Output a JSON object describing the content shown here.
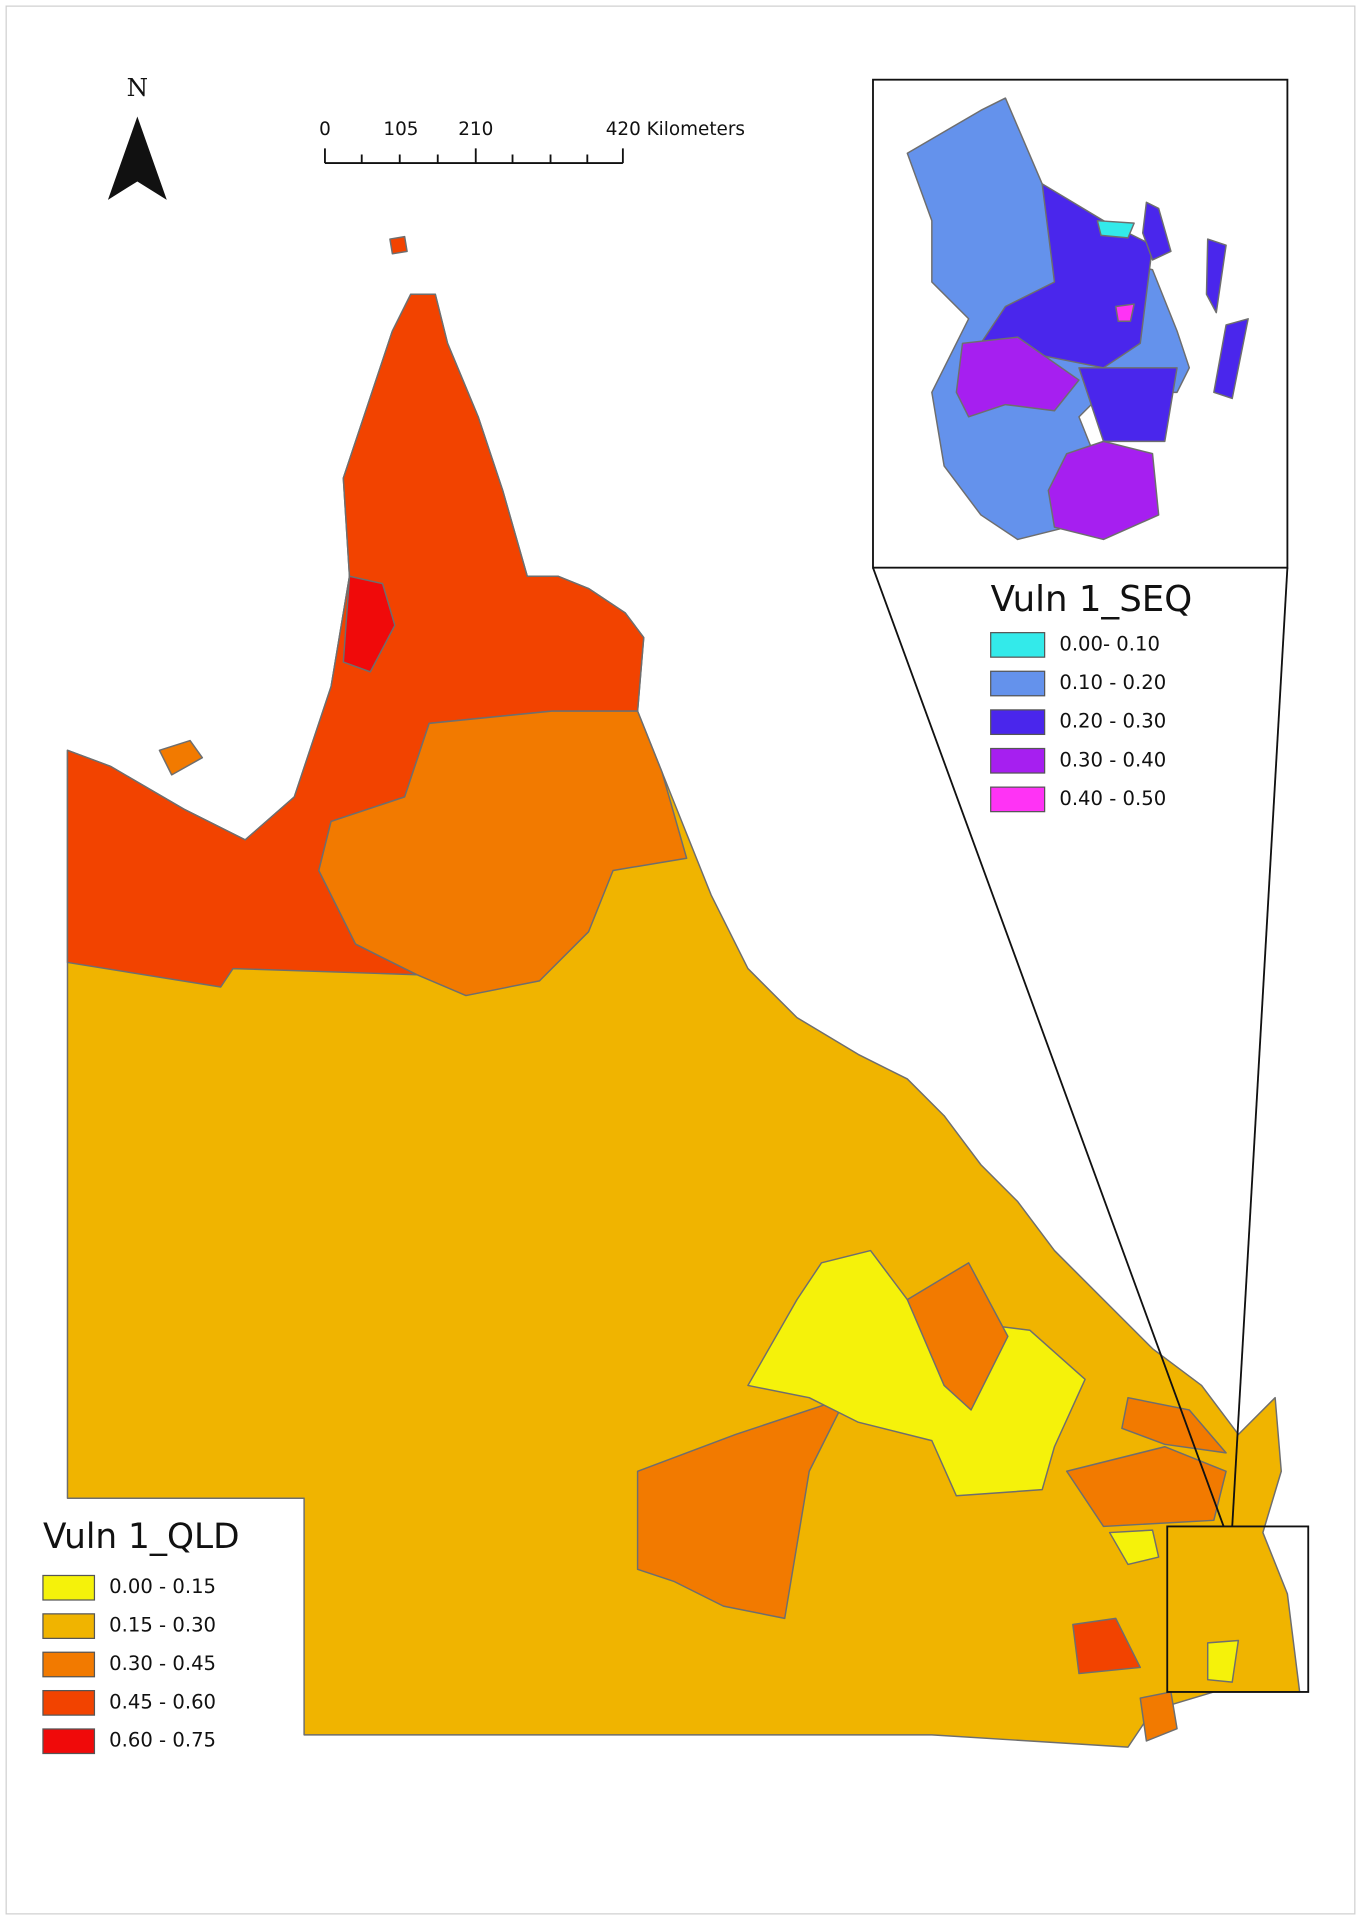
{
  "north_arrow": {
    "label": "N"
  },
  "scale_bar": {
    "labels": [
      "0",
      "105",
      "210",
      "420 Kilometers"
    ]
  },
  "legends": [
    {
      "title": "Vuln 1_QLD",
      "items": [
        {
          "label": "0.00 - 0.15",
          "color": "#f5f20a"
        },
        {
          "label": "0.15 - 0.30",
          "color": "#f0b400"
        },
        {
          "label": "0.30 - 0.45",
          "color": "#f27a00"
        },
        {
          "label": "0.45 - 0.60",
          "color": "#f24300"
        },
        {
          "label": "0.60 - 0.75",
          "color": "#f00a0a"
        }
      ]
    },
    {
      "title": "Vuln 1_SEQ",
      "items": [
        {
          "label": "0.00- 0.10",
          "color": "#33eaea"
        },
        {
          "label": "0.10 - 0.20",
          "color": "#6492ec"
        },
        {
          "label": "0.20 - 0.30",
          "color": "#4a26ec"
        },
        {
          "label": "0.30 - 0.40",
          "color": "#a61ff0"
        },
        {
          "label": "0.40 - 0.50",
          "color": "#ff33f5"
        }
      ]
    }
  ]
}
